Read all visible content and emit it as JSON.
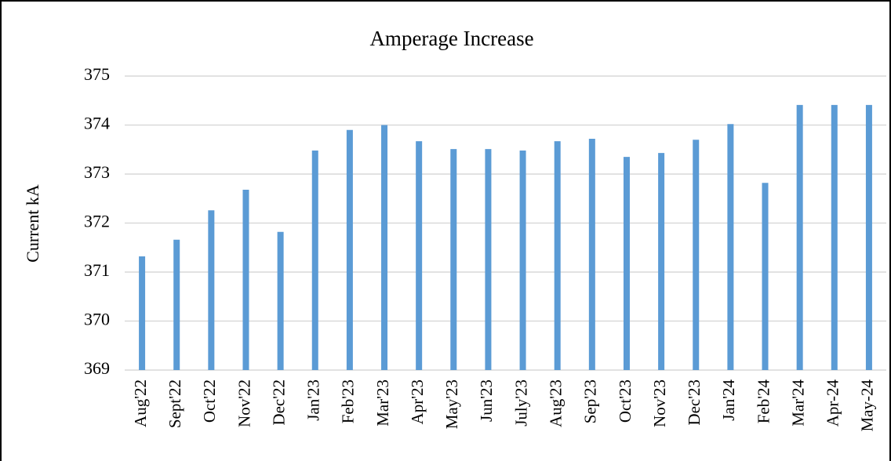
{
  "chart_data": {
    "type": "bar",
    "title": "Amperage Increase",
    "y_label": "Current kA",
    "categories": [
      "Aug'22",
      "Sept'22",
      "Oct'22",
      "Nov'22",
      "Dec'22",
      "Jan'23",
      "Feb'23",
      "Mar'23",
      "Apr'23",
      "May'23",
      "Jun'23",
      "July'23",
      "Aug'23",
      "Sep'23",
      "Oct'23",
      "Nov'23",
      "Dec'23",
      "Jan'24",
      "Feb'24",
      "Mar'24",
      "Apr-24",
      "May-24"
    ],
    "values": [
      371.32,
      371.66,
      372.26,
      372.68,
      371.82,
      373.48,
      373.9,
      374.0,
      373.67,
      373.51,
      373.51,
      373.48,
      373.67,
      373.72,
      373.35,
      373.43,
      373.7,
      374.02,
      372.82,
      374.41,
      374.41,
      374.41
    ],
    "color": "#5b9bd5",
    "ylim": [
      369,
      375
    ],
    "yticks": [
      369,
      370,
      371,
      372,
      373,
      374,
      375
    ],
    "grid": true
  }
}
